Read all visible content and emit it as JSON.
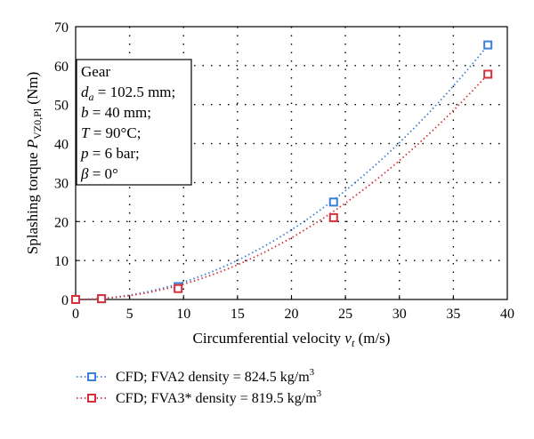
{
  "chart_data": {
    "type": "scatter",
    "title": "",
    "xlabel": "Circumferential velocity",
    "xlabel_var": "v",
    "xlabel_sub": "t",
    "xlabel_unit": "(m/s)",
    "ylabel": "Splashing torque",
    "ylabel_var": "P",
    "ylabel_sub": "VZ0,Pl",
    "ylabel_unit": "(Nm)",
    "xlim": [
      0,
      40
    ],
    "ylim": [
      0,
      70
    ],
    "xticks": [
      "0",
      "5",
      "10",
      "15",
      "20",
      "25",
      "30",
      "35",
      "40"
    ],
    "yticks": [
      "0",
      "10",
      "20",
      "30",
      "40",
      "50",
      "60",
      "70"
    ],
    "grid": true,
    "legend_position": "bottom",
    "series": [
      {
        "name": "CFD; FVA2  density = 824.5 kg/m",
        "name_sup": "3",
        "color": "#3a7fd5",
        "points": [
          [
            0,
            0
          ],
          [
            2.4,
            0.2
          ],
          [
            9.5,
            3.3
          ],
          [
            23.9,
            25.0
          ],
          [
            38.2,
            65.3
          ]
        ],
        "trend_coef": 0.0447
      },
      {
        "name": "CFD; FVA3*  density = 819.5 kg/m",
        "name_sup": "3",
        "color": "#d6303a",
        "points": [
          [
            0,
            0
          ],
          [
            2.4,
            0.2
          ],
          [
            9.5,
            2.8
          ],
          [
            23.9,
            21.0
          ],
          [
            38.2,
            57.8
          ]
        ],
        "trend_coef": 0.0396
      }
    ],
    "annotation": [
      {
        "pre": "Gear",
        "sub": "",
        "post": ""
      },
      {
        "pre": "d",
        "sub": "a",
        "post": " = 102.5 mm;"
      },
      {
        "pre": "b",
        "sub": "",
        "post": " = 40 mm;"
      },
      {
        "pre": "T",
        "sub": "",
        "post": " = 90°C;"
      },
      {
        "pre": "p",
        "sub": "",
        "post": " = 6 bar;"
      },
      {
        "pre": "β",
        "sub": "",
        "post": " = 0°"
      }
    ]
  }
}
